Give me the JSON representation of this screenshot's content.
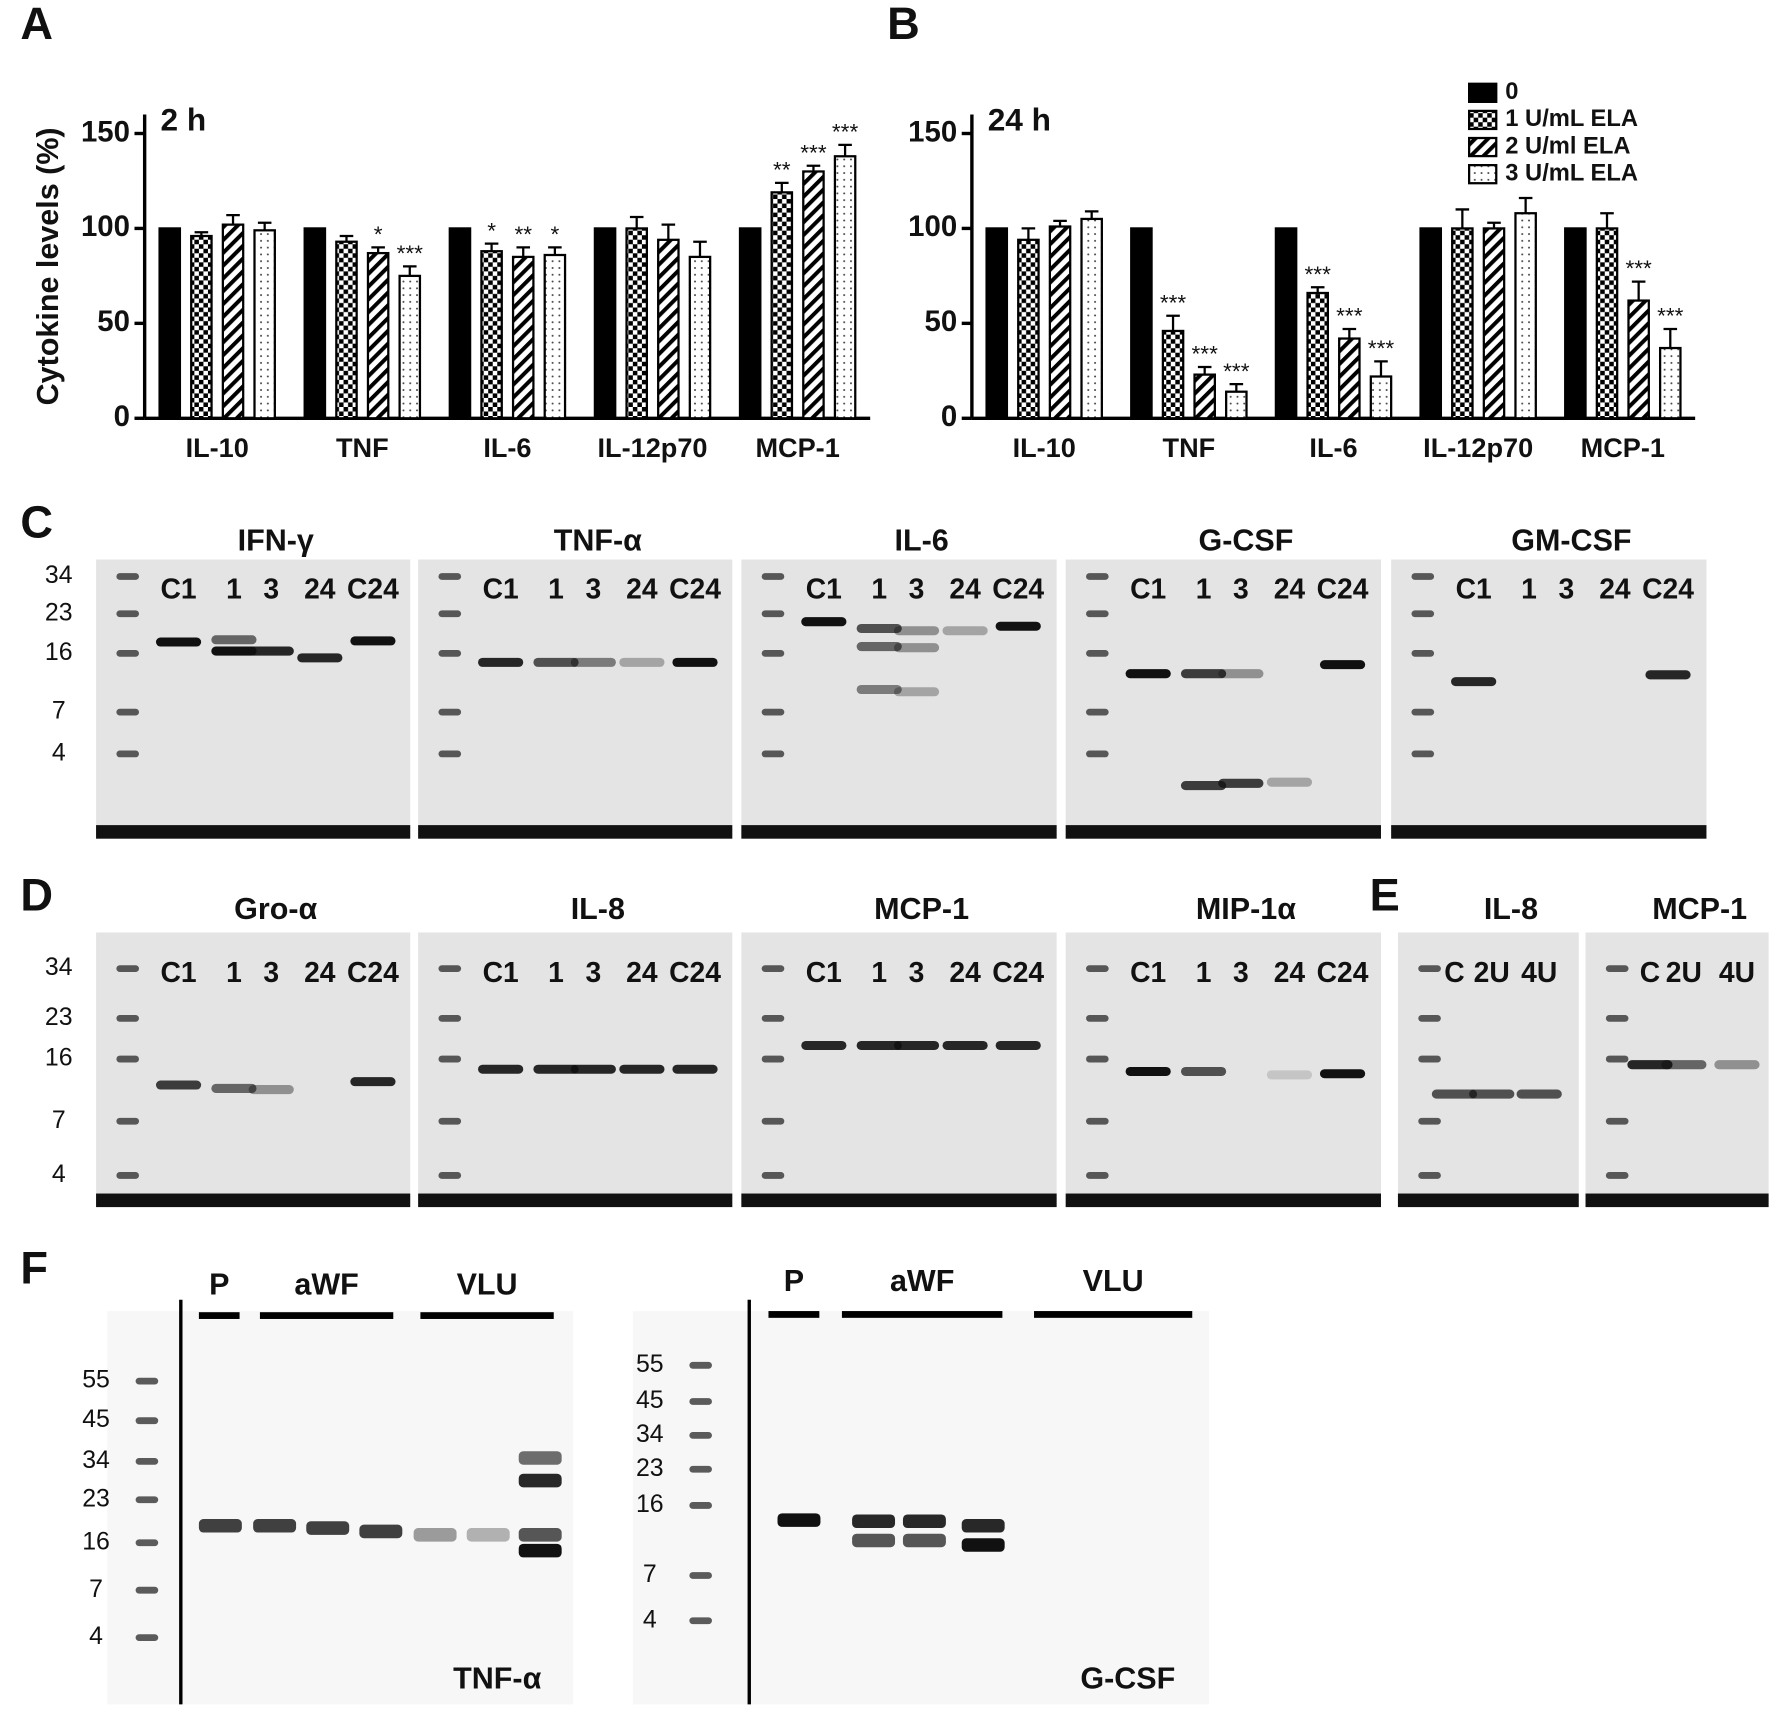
{
  "chart_data": [
    {
      "type": "bar",
      "panel": "A",
      "label": "2 h",
      "ylabel": "Cytokine levels (%)",
      "categories": [
        "IL-10",
        "TNF",
        "IL-6",
        "IL-12p70",
        "MCP-1"
      ],
      "ylim": [
        0,
        160
      ],
      "yticks": [
        0,
        50,
        100,
        150
      ],
      "legend": false,
      "series": [
        {
          "color": "#000000",
          "pattern": "solid",
          "values": [
            100,
            100,
            100,
            100,
            100
          ]
        },
        {
          "color": "#000000",
          "pattern": "checker",
          "values": [
            96,
            93,
            88,
            100,
            119
          ],
          "errors": [
            2,
            3,
            4,
            6,
            5
          ],
          "annotations": [
            null,
            null,
            "*",
            null,
            "**"
          ]
        },
        {
          "color": "#000000",
          "pattern": "hatch",
          "values": [
            102,
            87,
            85,
            94,
            130
          ],
          "errors": [
            5,
            3,
            5,
            8,
            3
          ],
          "annotations": [
            null,
            "*",
            "**",
            null,
            "***"
          ]
        },
        {
          "color": "#000000",
          "pattern": "dots",
          "values": [
            99,
            75,
            86,
            85,
            138
          ],
          "errors": [
            4,
            5,
            4,
            8,
            6
          ],
          "annotations": [
            null,
            "***",
            "*",
            null,
            "***"
          ]
        }
      ]
    },
    {
      "type": "bar",
      "panel": "B",
      "label": "24 h",
      "categories": [
        "IL-10",
        "TNF",
        "IL-6",
        "IL-12p70",
        "MCP-1"
      ],
      "ylim": [
        0,
        160
      ],
      "yticks": [
        0,
        50,
        100,
        150
      ],
      "legend": "top-right",
      "series": [
        {
          "name": "0",
          "color": "#000000",
          "pattern": "solid",
          "values": [
            100,
            100,
            100,
            100,
            100
          ]
        },
        {
          "name": "1 U/mL ELA",
          "color": "#000000",
          "pattern": "checker",
          "values": [
            94,
            46,
            66,
            100,
            100
          ],
          "errors": [
            6,
            8,
            3,
            10,
            8
          ],
          "annotations": [
            null,
            "***",
            "***",
            null,
            null
          ]
        },
        {
          "name": "2 U/ml ELA",
          "color": "#000000",
          "pattern": "hatch",
          "values": [
            101,
            23,
            42,
            100,
            62
          ],
          "errors": [
            3,
            4,
            5,
            3,
            10
          ],
          "annotations": [
            null,
            "***",
            "***",
            null,
            "***"
          ]
        },
        {
          "name": "3 U/mL ELA",
          "color": "#000000",
          "pattern": "dots",
          "values": [
            105,
            14,
            22,
            108,
            37
          ],
          "errors": [
            4,
            4,
            8,
            8,
            10
          ],
          "annotations": [
            null,
            "***",
            "***",
            null,
            "***"
          ]
        }
      ]
    }
  ],
  "gels": [
    {
      "letter": "C",
      "markers": [
        34,
        23,
        16,
        7,
        4
      ],
      "panels": [
        {
          "title": "IFN-γ",
          "lanes": [
            "C1",
            "1",
            "3",
            "24",
            "C24"
          ]
        },
        {
          "title": "TNF-α",
          "lanes": [
            "C1",
            "1",
            "3",
            "24",
            "C24"
          ]
        },
        {
          "title": "IL-6",
          "lanes": [
            "C1",
            "1",
            "3",
            "24",
            "C24"
          ]
        },
        {
          "title": "G-CSF",
          "lanes": [
            "C1",
            "1",
            "3",
            "24",
            "C24"
          ]
        },
        {
          "title": "GM-CSF",
          "lanes": [
            "C1",
            "1",
            "3",
            "24",
            "C24"
          ]
        }
      ]
    },
    {
      "letter": "D",
      "markers": [
        34,
        23,
        16,
        7,
        4
      ],
      "panels": [
        {
          "title": "Gro-α",
          "lanes": [
            "C1",
            "1",
            "3",
            "24",
            "C24"
          ]
        },
        {
          "title": "IL-8",
          "lanes": [
            "C1",
            "1",
            "3",
            "24",
            "C24"
          ]
        },
        {
          "title": "MCP-1",
          "lanes": [
            "C1",
            "1",
            "3",
            "24",
            "C24"
          ]
        },
        {
          "title": "MIP-1α",
          "lanes": [
            "C1",
            "1",
            "3",
            "24",
            "C24"
          ]
        }
      ]
    },
    {
      "letter": "E",
      "panels": [
        {
          "title": "IL-8",
          "lanes": [
            "C",
            "2U",
            "4U"
          ]
        },
        {
          "title": "MCP-1",
          "lanes": [
            "C",
            "2U",
            "4U"
          ]
        }
      ]
    }
  ],
  "blots": {
    "letter": "F",
    "panels": [
      {
        "groups": [
          "P",
          "aWF",
          "VLU"
        ],
        "markers": [
          55,
          45,
          34,
          23,
          16,
          7,
          4
        ],
        "label": "TNF-α"
      },
      {
        "groups": [
          "P",
          "aWF",
          "VLU"
        ],
        "markers": [
          55,
          45,
          34,
          23,
          16,
          7,
          4
        ],
        "label": "G-CSF"
      }
    ]
  }
}
